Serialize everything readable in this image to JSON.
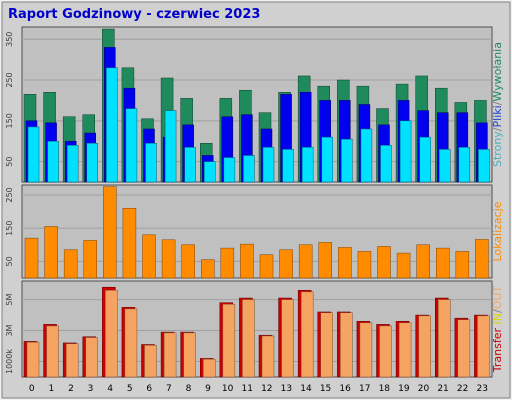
{
  "title": "Raport Godzinowy -  czerwiec 2023",
  "side_labels": {
    "panel1": [
      {
        "text": "Strony",
        "color": "#4aaec0"
      },
      {
        "text": "/",
        "color": "#808080"
      },
      {
        "text": "Pliki",
        "color": "#1c40d8"
      },
      {
        "text": "/",
        "color": "#808080"
      },
      {
        "text": "Wywołania",
        "color": "#1f8a5c"
      }
    ],
    "panel2": [
      {
        "text": "Lokalizacje",
        "color": "#ff8c00"
      }
    ],
    "panel3": [
      {
        "text": "Transfer",
        "color": "#cc0000"
      },
      {
        "text": " IN",
        "color": "#d8d800"
      },
      {
        "text": "/",
        "color": "#808080"
      },
      {
        "text": "OUT",
        "color": "#f4a460"
      }
    ]
  },
  "colors": {
    "background": "#d0d0d0",
    "plot_bg": "#c0c0c0",
    "hits": "#1f8a5c",
    "files": "#0000ee",
    "pages": "#00e0ff",
    "sites": "#ff8c00",
    "kbytes_in": "#cc0000",
    "kbytes_out": "#f4a460",
    "title": "#0000cc"
  },
  "chart_data": [
    {
      "type": "bar",
      "ylabel": "Strony/Pliki/Wywołania",
      "ylim": [
        0,
        380
      ],
      "ticks": [
        "50",
        "150",
        "250",
        "350"
      ],
      "tick_values": [
        50,
        150,
        250,
        350
      ],
      "categories": [
        "0",
        "1",
        "2",
        "3",
        "4",
        "5",
        "6",
        "7",
        "8",
        "9",
        "10",
        "11",
        "12",
        "13",
        "14",
        "15",
        "16",
        "17",
        "18",
        "19",
        "20",
        "21",
        "22",
        "23"
      ],
      "series": [
        {
          "name": "Wywołania",
          "values": [
            215,
            220,
            160,
            165,
            375,
            280,
            155,
            255,
            205,
            95,
            205,
            225,
            170,
            220,
            260,
            235,
            250,
            235,
            180,
            240,
            260,
            230,
            195,
            200
          ]
        },
        {
          "name": "Pliki",
          "values": [
            150,
            145,
            100,
            120,
            330,
            230,
            130,
            110,
            140,
            65,
            160,
            165,
            130,
            215,
            220,
            200,
            200,
            190,
            140,
            200,
            175,
            170,
            170,
            145
          ]
        },
        {
          "name": "Strony",
          "values": [
            135,
            100,
            90,
            95,
            280,
            180,
            95,
            175,
            85,
            50,
            60,
            65,
            85,
            80,
            85,
            110,
            105,
            130,
            90,
            150,
            110,
            80,
            85,
            80
          ]
        }
      ]
    },
    {
      "type": "bar",
      "ylabel": "Lokalizacje",
      "ylim": [
        0,
        280
      ],
      "ticks": [
        "50",
        "150",
        "250"
      ],
      "tick_values": [
        50,
        150,
        250
      ],
      "categories": [
        "0",
        "1",
        "2",
        "3",
        "4",
        "5",
        "6",
        "7",
        "8",
        "9",
        "10",
        "11",
        "12",
        "13",
        "14",
        "15",
        "16",
        "17",
        "18",
        "19",
        "20",
        "21",
        "22",
        "23"
      ],
      "series": [
        {
          "name": "Lokalizacje",
          "values": [
            120,
            155,
            85,
            113,
            275,
            210,
            130,
            115,
            100,
            55,
            90,
            102,
            70,
            85,
            100,
            107,
            92,
            80,
            95,
            75,
            100,
            90,
            80,
            116
          ]
        }
      ]
    },
    {
      "type": "bar",
      "ylabel": "Transfer IN/OUT",
      "ylim": [
        0,
        6200
      ],
      "ticks": [
        "1000k",
        "3M",
        "5M"
      ],
      "tick_values": [
        1000,
        3000,
        5000
      ],
      "categories": [
        "0",
        "1",
        "2",
        "3",
        "4",
        "5",
        "6",
        "7",
        "8",
        "9",
        "10",
        "11",
        "12",
        "13",
        "14",
        "15",
        "16",
        "17",
        "18",
        "19",
        "20",
        "21",
        "22",
        "23"
      ],
      "series": [
        {
          "name": "IN",
          "values": [
            2300,
            3400,
            2200,
            2600,
            5800,
            4500,
            2100,
            2900,
            2900,
            1200,
            4800,
            5100,
            2700,
            5100,
            5600,
            4200,
            4200,
            3600,
            3400,
            3600,
            4000,
            5100,
            3800,
            4000
          ]
        },
        {
          "name": "OUT",
          "values": [
            2250,
            3300,
            2150,
            2550,
            5600,
            4400,
            2050,
            2850,
            2850,
            1150,
            4700,
            5000,
            2650,
            5000,
            5500,
            4150,
            4150,
            3500,
            3300,
            3500,
            3950,
            5000,
            3700,
            3950
          ]
        }
      ]
    }
  ]
}
